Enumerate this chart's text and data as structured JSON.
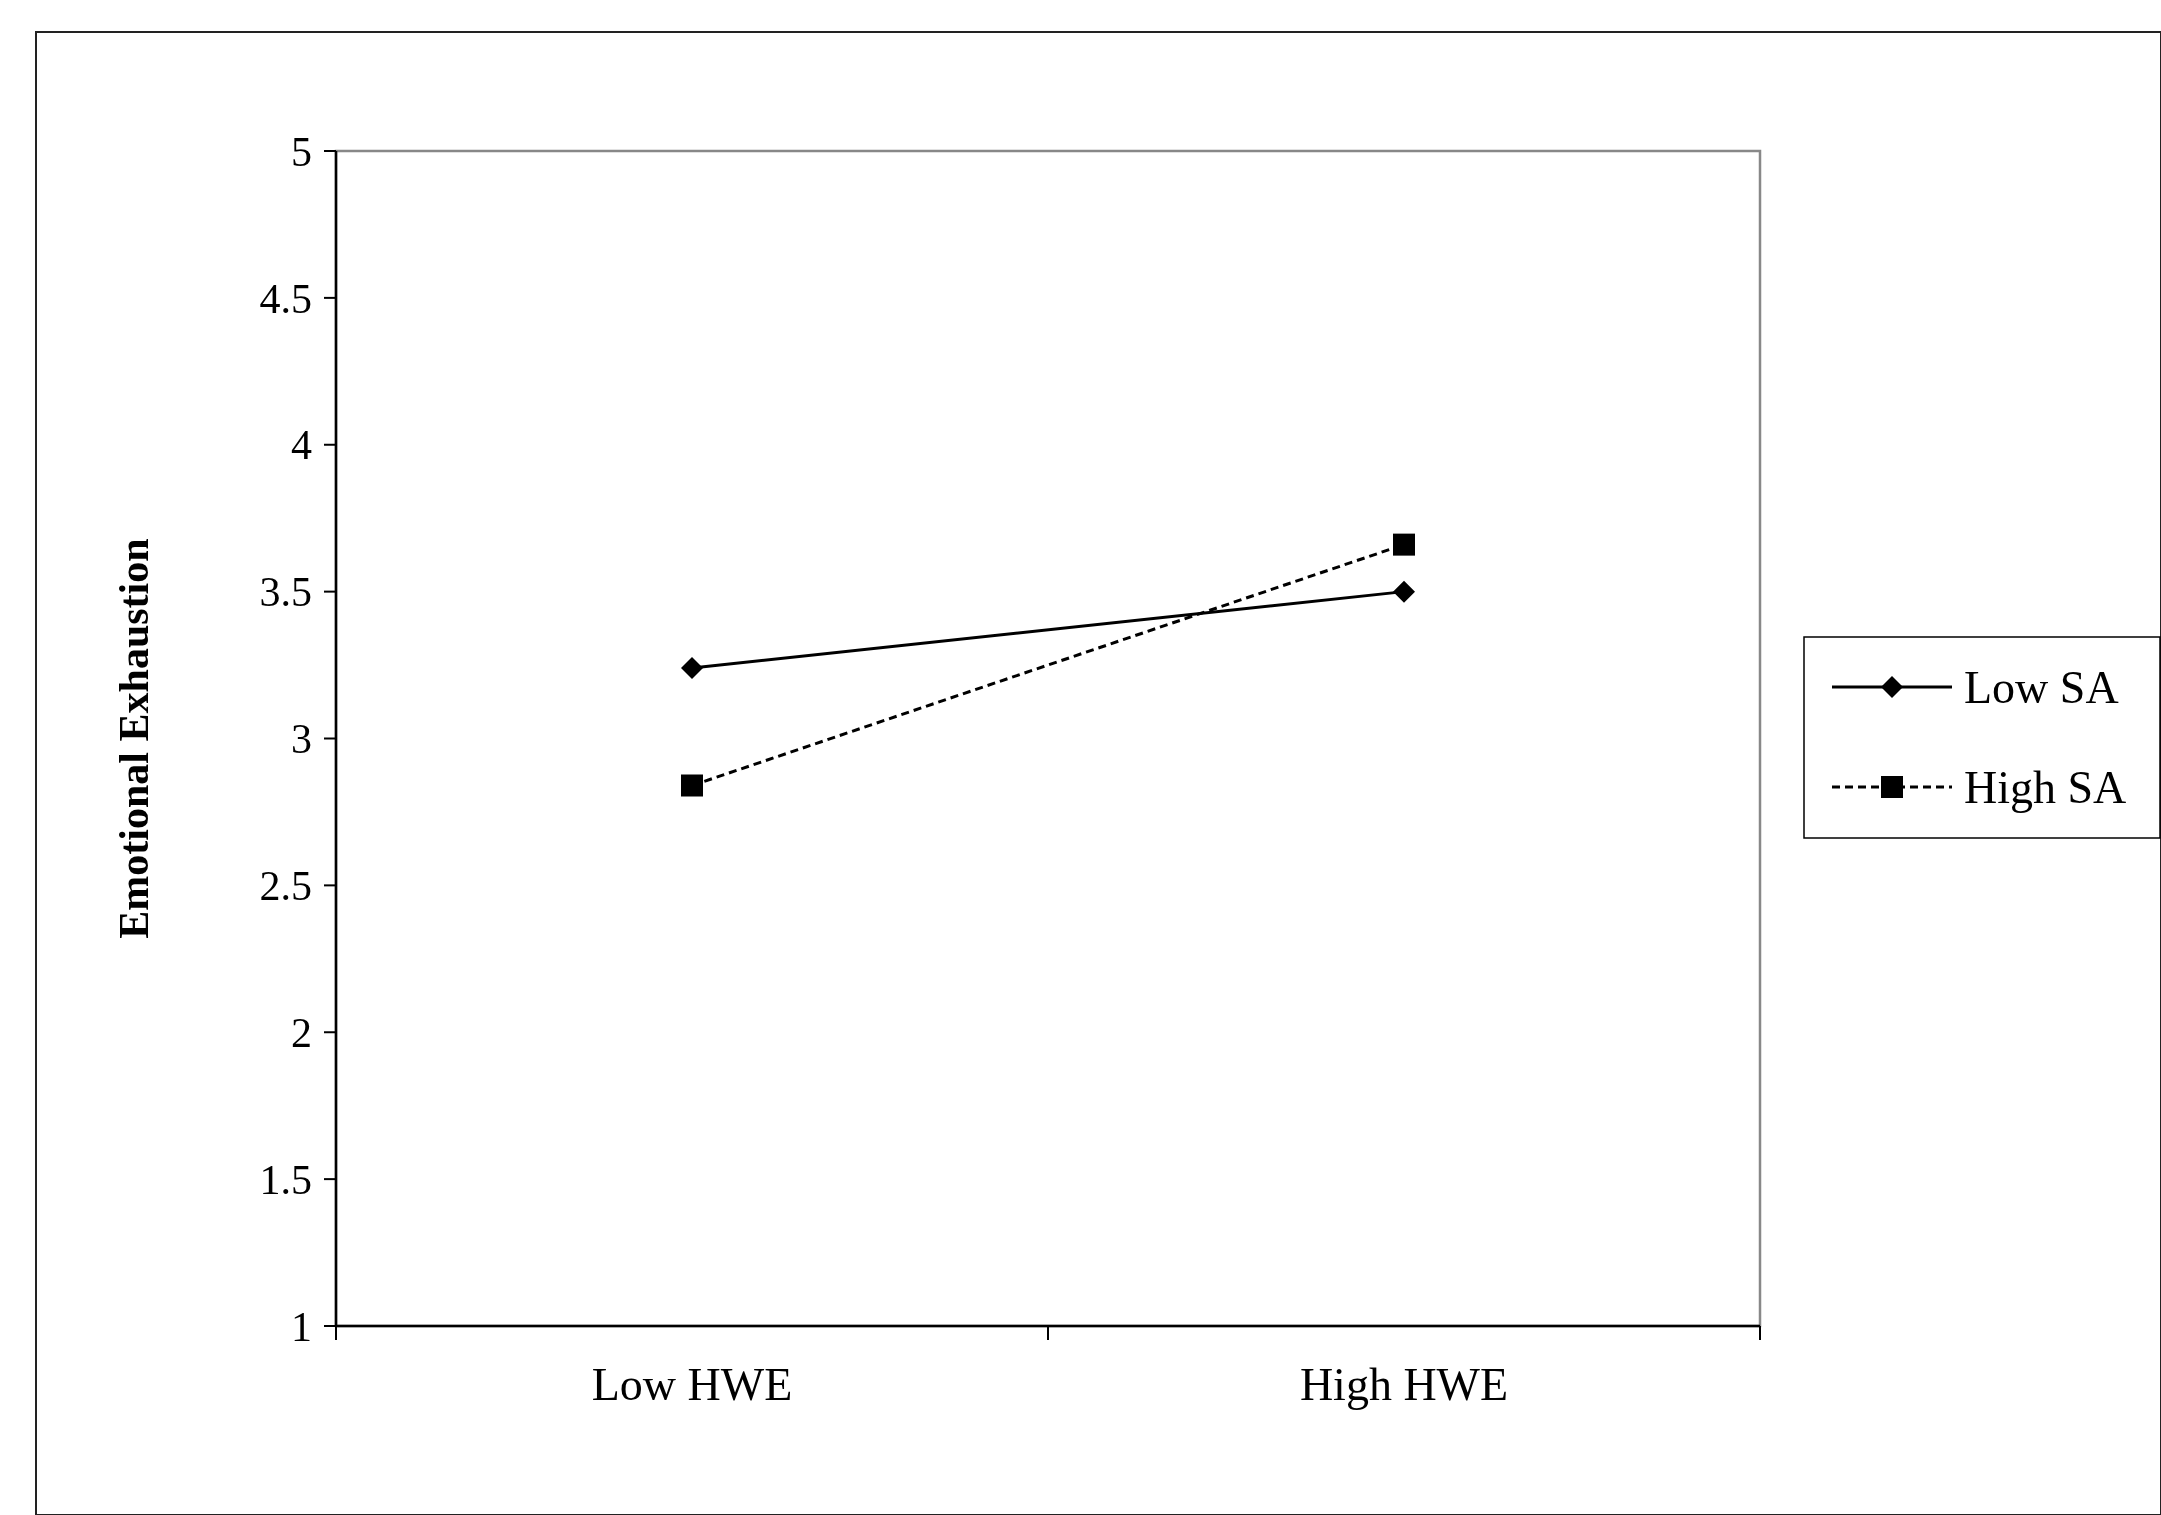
{
  "chart_data": {
    "type": "line",
    "ylabel": "Emotional  Exhaustion",
    "categories": [
      "Low HWE",
      "High HWE"
    ],
    "series": [
      {
        "name": "Low SA",
        "color": "#000000",
        "values": [
          3.24,
          3.5
        ],
        "marker": "diamond",
        "line_style": "solid"
      },
      {
        "name": "High SA",
        "color": "#000000",
        "values": [
          2.84,
          3.66
        ],
        "marker": "square",
        "line_style": "dashed"
      }
    ],
    "ylim": [
      1,
      5
    ],
    "yticks": [
      1,
      1.5,
      2,
      2.5,
      3,
      3.5,
      4,
      4.5,
      5
    ],
    "grid": false,
    "legend": "right"
  }
}
